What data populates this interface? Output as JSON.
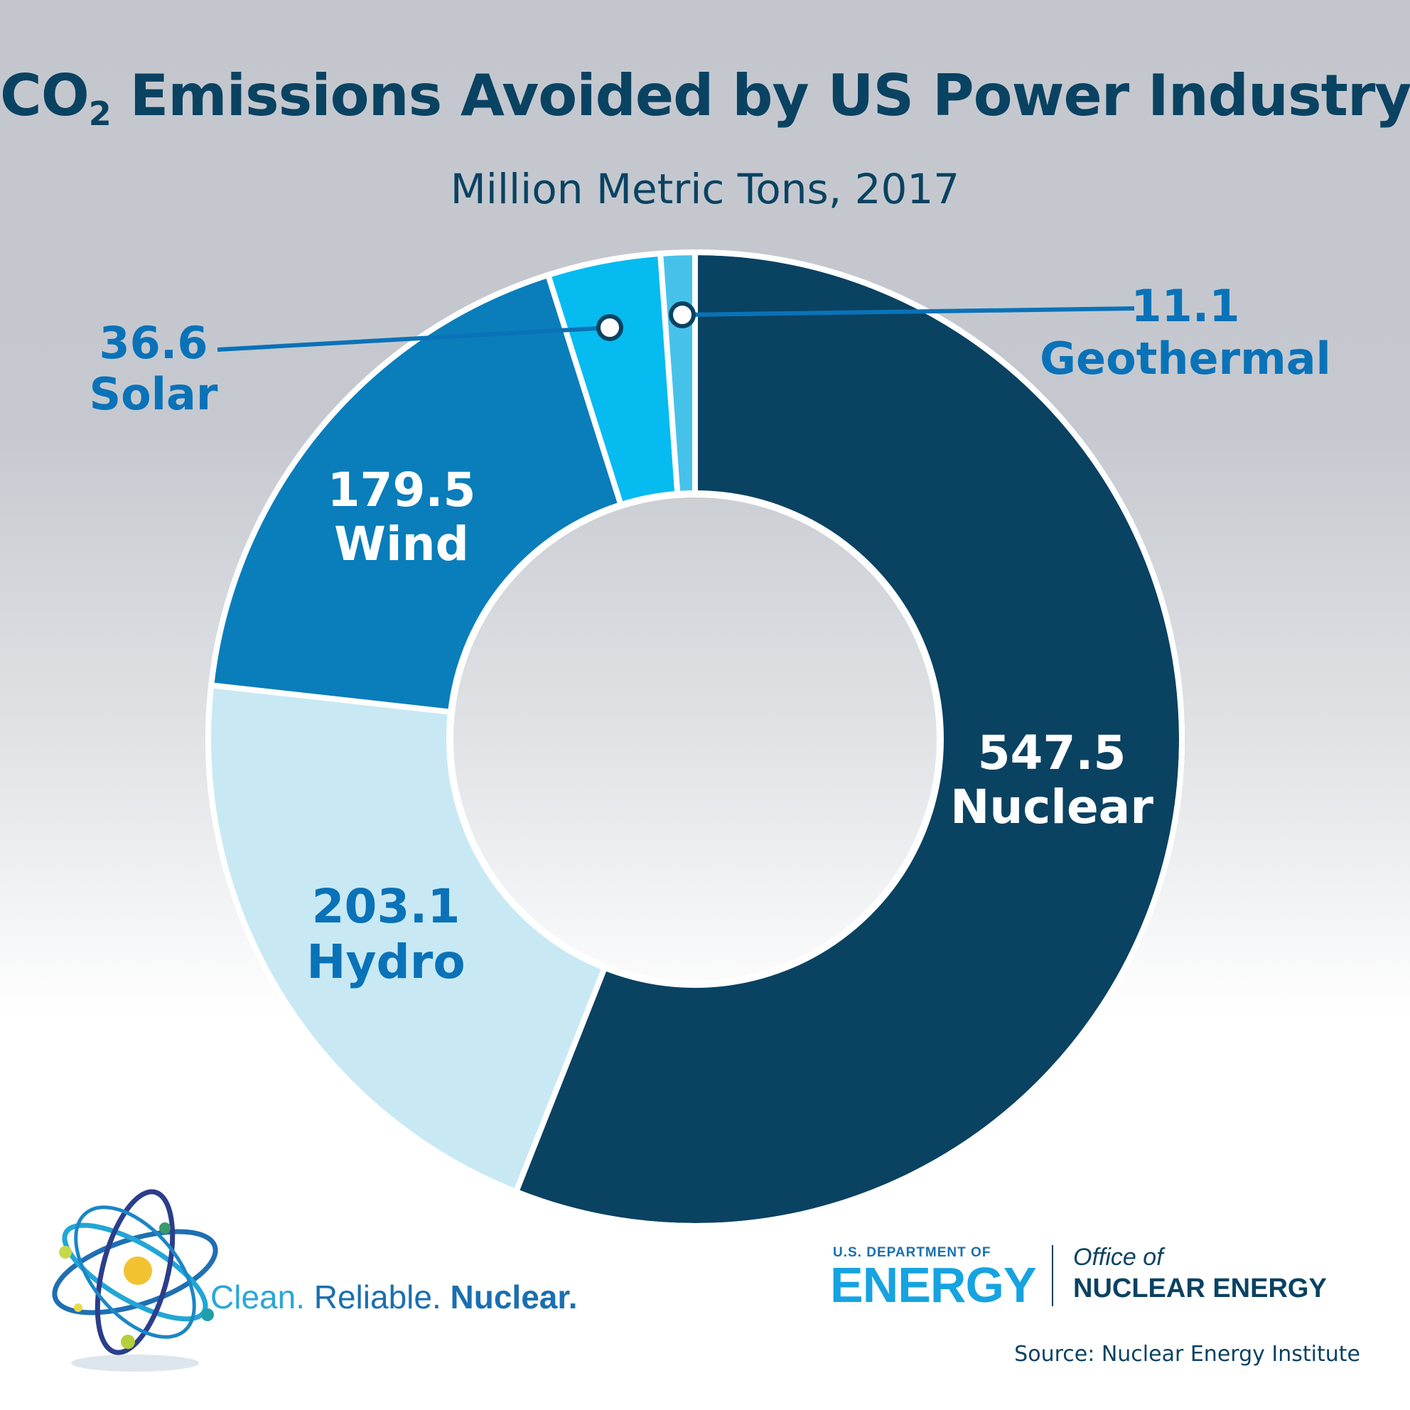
{
  "header": {
    "title_main": "CO",
    "title_sub": "2",
    "title_rest": " Emissions Avoided by US Power Industry",
    "subtitle": "Million Metric Tons, 2017"
  },
  "chart_data": {
    "type": "pie",
    "style": "donut",
    "title": "CO2 Emissions Avoided by US Power Industry",
    "subtitle": "Million Metric Tons, 2017",
    "slices": [
      {
        "label": "Nuclear",
        "value": 547.5,
        "value_label": "547.5",
        "color": "#0a4262"
      },
      {
        "label": "Hydro",
        "value": 203.1,
        "value_label": "203.1",
        "color": "#c8e9f4"
      },
      {
        "label": "Wind",
        "value": 179.5,
        "value_label": "179.5",
        "color": "#0a7dbb"
      },
      {
        "label": "Solar",
        "value": 36.6,
        "value_label": "36.6",
        "color": "#06bbef"
      },
      {
        "label": "Geothermal",
        "value": 11.1,
        "value_label": "11.1",
        "color": "#46c2ea"
      }
    ]
  },
  "footer": {
    "tagline_1": "Clean.",
    "tagline_2": " Reliable.",
    "tagline_3": " Nuclear.",
    "doe_small": "U.S. DEPARTMENT OF",
    "doe_big": "ENERGY",
    "office_line1": "Office of",
    "office_line2": "NUCLEAR ENERGY",
    "source": "Source: Nuclear Energy Institute"
  },
  "colors": {
    "title": "#0a4262",
    "label_blue": "#0a72b8",
    "label_white": "#ffffff",
    "separator": "#ffffff"
  },
  "icons": [
    "atom-logo-icon"
  ]
}
